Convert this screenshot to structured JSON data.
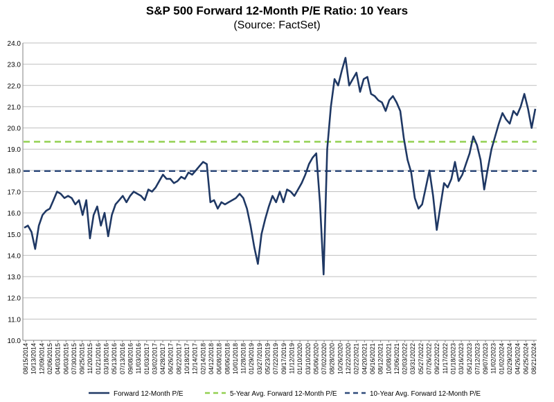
{
  "chart_data": {
    "type": "line",
    "title": "S&P 500 Forward 12-Month P/E Ratio: 10 Years",
    "subtitle": "(Source: FactSet)",
    "xlabel": "",
    "ylabel": "",
    "ylim": [
      10.0,
      24.0
    ],
    "yticks": [
      "10.0",
      "11.0",
      "12.0",
      "13.0",
      "14.0",
      "15.0",
      "16.0",
      "17.0",
      "18.0",
      "19.0",
      "20.0",
      "21.0",
      "22.0",
      "23.0",
      "24.0"
    ],
    "xticks": [
      "08/15/2014",
      "10/13/2014",
      "12/09/2014",
      "02/06/2015",
      "04/03/2015",
      "06/03/2015",
      "07/30/2015",
      "09/25/2015",
      "11/20/2015",
      "01/21/2016",
      "03/18/2016",
      "05/13/2016",
      "07/13/2016",
      "09/08/2016",
      "11/03/2016",
      "01/03/2017",
      "03/02/2017",
      "04/28/2017",
      "06/26/2017",
      "08/22/2017",
      "10/18/2017",
      "12/14/2017",
      "02/14/2018",
      "04/12/2018",
      "06/08/2018",
      "08/06/2018",
      "10/01/2018",
      "11/28/2018",
      "01/29/2019",
      "03/27/2019",
      "05/23/2019",
      "07/22/2019",
      "09/17/2019",
      "11/12/2019",
      "01/10/2020",
      "03/10/2020",
      "05/06/2020",
      "07/02/2020",
      "08/28/2020",
      "10/26/2020",
      "12/22/2020",
      "02/22/2021",
      "04/20/2021",
      "06/16/2021",
      "08/12/2021",
      "10/08/2021",
      "12/06/2021",
      "02/03/2022",
      "03/31/2022",
      "05/27/2022",
      "07/26/2022",
      "09/22/2022",
      "11/17/2022",
      "01/18/2023",
      "03/16/2023",
      "05/12/2023",
      "07/12/2023",
      "09/07/2023",
      "11/02/2023",
      "01/02/2024",
      "02/29/2024",
      "04/26/2024",
      "06/25/2024",
      "08/21/2024"
    ],
    "grid": true,
    "legend_position": "bottom",
    "series": [
      {
        "name": "Forward 12-Month P/E",
        "color": "#1f3864",
        "style": "solid",
        "values": [
          15.3,
          15.4,
          15.1,
          14.3,
          15.4,
          15.9,
          16.1,
          16.2,
          16.6,
          17.0,
          16.9,
          16.7,
          16.8,
          16.7,
          16.4,
          16.6,
          15.9,
          16.6,
          14.8,
          15.9,
          16.3,
          15.4,
          16.0,
          14.9,
          15.9,
          16.4,
          16.6,
          16.8,
          16.5,
          16.8,
          17.0,
          16.9,
          16.8,
          16.6,
          17.1,
          17.0,
          17.2,
          17.5,
          17.8,
          17.6,
          17.6,
          17.4,
          17.5,
          17.7,
          17.6,
          17.9,
          17.8,
          18.0,
          18.2,
          18.4,
          18.3,
          16.5,
          16.6,
          16.2,
          16.5,
          16.4,
          16.5,
          16.6,
          16.7,
          16.9,
          16.7,
          16.2,
          15.4,
          14.4,
          13.6,
          15.0,
          15.7,
          16.3,
          16.8,
          16.5,
          17.0,
          16.5,
          17.1,
          17.0,
          16.8,
          17.1,
          17.4,
          17.8,
          18.3,
          18.6,
          18.8,
          16.5,
          13.1,
          19.0,
          21.0,
          22.3,
          22.0,
          22.7,
          23.3,
          22.0,
          22.3,
          22.6,
          21.7,
          22.3,
          22.4,
          21.6,
          21.5,
          21.3,
          21.2,
          20.8,
          21.3,
          21.5,
          21.2,
          20.8,
          19.5,
          18.5,
          17.9,
          16.7,
          16.2,
          16.4,
          17.2,
          18.0,
          16.8,
          15.2,
          16.3,
          17.4,
          17.2,
          17.6,
          18.4,
          17.5,
          17.8,
          18.3,
          18.8,
          19.6,
          19.2,
          18.5,
          17.1,
          18.1,
          19.0,
          19.6,
          20.2,
          20.7,
          20.4,
          20.2,
          20.8,
          20.6,
          21.0,
          21.6,
          20.9,
          20.0,
          20.9
        ]
      },
      {
        "name": "5-Year Avg. Forward 12-Month P/E",
        "color": "#92d050",
        "style": "dashed",
        "values": [
          19.35
        ]
      },
      {
        "name": "10-Year Avg. Forward 12-Month P/E",
        "color": "#2e4a7a",
        "style": "dashed",
        "values": [
          17.97
        ]
      }
    ]
  }
}
